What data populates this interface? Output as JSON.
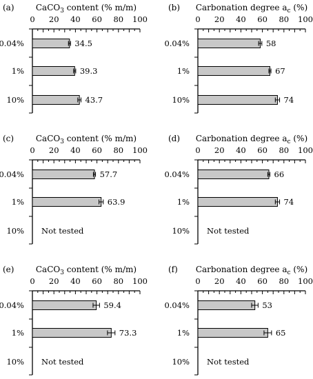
{
  "chart_data": [
    {
      "panel": "(a)",
      "type": "bar",
      "orientation": "horizontal",
      "title": "CaCO3 content (% m/m)",
      "title_main": "CaCO",
      "title_sub": "3",
      "title_rest": " content (% m/m)",
      "xlim": [
        0,
        100
      ],
      "ticks": [
        "0",
        "20",
        "40",
        "60",
        "80",
        "100"
      ],
      "categories": [
        "0.04%",
        "1%",
        "10%"
      ],
      "values": [
        34.5,
        39.3,
        43.7
      ],
      "errors": [
        1.0,
        1.0,
        1.5
      ],
      "value_labels": [
        "34.5",
        "39.3",
        "43.7"
      ],
      "not_tested": ""
    },
    {
      "panel": "(b)",
      "type": "bar",
      "orientation": "horizontal",
      "title": "Carbonation degree ac (%)",
      "title_main": "Carbonation degree a",
      "title_sub": "c",
      "title_rest": " (%)",
      "xlim": [
        0,
        100
      ],
      "ticks": [
        "0",
        "20",
        "40",
        "60",
        "80",
        "100"
      ],
      "categories": [
        "0.04%",
        "1%",
        "10%"
      ],
      "values": [
        58,
        67,
        74
      ],
      "errors": [
        1.5,
        1.0,
        2.0
      ],
      "value_labels": [
        "58",
        "67",
        "74"
      ],
      "not_tested": ""
    },
    {
      "panel": "(c)",
      "type": "bar",
      "orientation": "horizontal",
      "title": "CaCO3 content (% m/m)",
      "title_main": "CaCO",
      "title_sub": "3",
      "title_rest": " content (% m/m)",
      "xlim": [
        0,
        100
      ],
      "ticks": [
        "0",
        "20",
        "40",
        "60",
        "80",
        "100"
      ],
      "categories": [
        "0.04%",
        "1%",
        "10%"
      ],
      "values": [
        57.7,
        63.9,
        null
      ],
      "errors": [
        1.0,
        2.0,
        null
      ],
      "value_labels": [
        "57.7",
        "63.9",
        ""
      ],
      "not_tested": "Not tested"
    },
    {
      "panel": "(d)",
      "type": "bar",
      "orientation": "horizontal",
      "title": "Carbonation degree ac (%)",
      "title_main": "Carbonation degree a",
      "title_sub": "c",
      "title_rest": " (%)",
      "xlim": [
        0,
        100
      ],
      "ticks": [
        "0",
        "20",
        "40",
        "60",
        "80",
        "100"
      ],
      "categories": [
        "0.04%",
        "1%",
        "10%"
      ],
      "values": [
        66,
        74,
        null
      ],
      "errors": [
        1.0,
        2.0,
        null
      ],
      "value_labels": [
        "66",
        "74",
        ""
      ],
      "not_tested": "Not tested"
    },
    {
      "panel": "(e)",
      "type": "bar",
      "orientation": "horizontal",
      "title": "CaCO3 content (% m/m)",
      "title_main": "CaCO",
      "title_sub": "3",
      "title_rest": " content (% m/m)",
      "xlim": [
        0,
        100
      ],
      "ticks": [
        "0",
        "20",
        "40",
        "60",
        "80",
        "100"
      ],
      "categories": [
        "0.04%",
        "1%",
        "10%"
      ],
      "values": [
        59.4,
        73.3,
        null
      ],
      "errors": [
        3.0,
        3.5,
        null
      ],
      "value_labels": [
        "59.4",
        "73.3",
        ""
      ],
      "not_tested": "Not tested"
    },
    {
      "panel": "(f)",
      "type": "bar",
      "orientation": "horizontal",
      "title": "Carbonation degree ac (%)",
      "title_main": "Carbonation degree a",
      "title_sub": "c",
      "title_rest": " (%)",
      "xlim": [
        0,
        100
      ],
      "ticks": [
        "0",
        "20",
        "40",
        "60",
        "80",
        "100"
      ],
      "categories": [
        "0.04%",
        "1%",
        "10%"
      ],
      "values": [
        53,
        65,
        null
      ],
      "errors": [
        3.0,
        3.5,
        null
      ],
      "value_labels": [
        "53",
        "65",
        ""
      ],
      "not_tested": "Not tested"
    }
  ]
}
